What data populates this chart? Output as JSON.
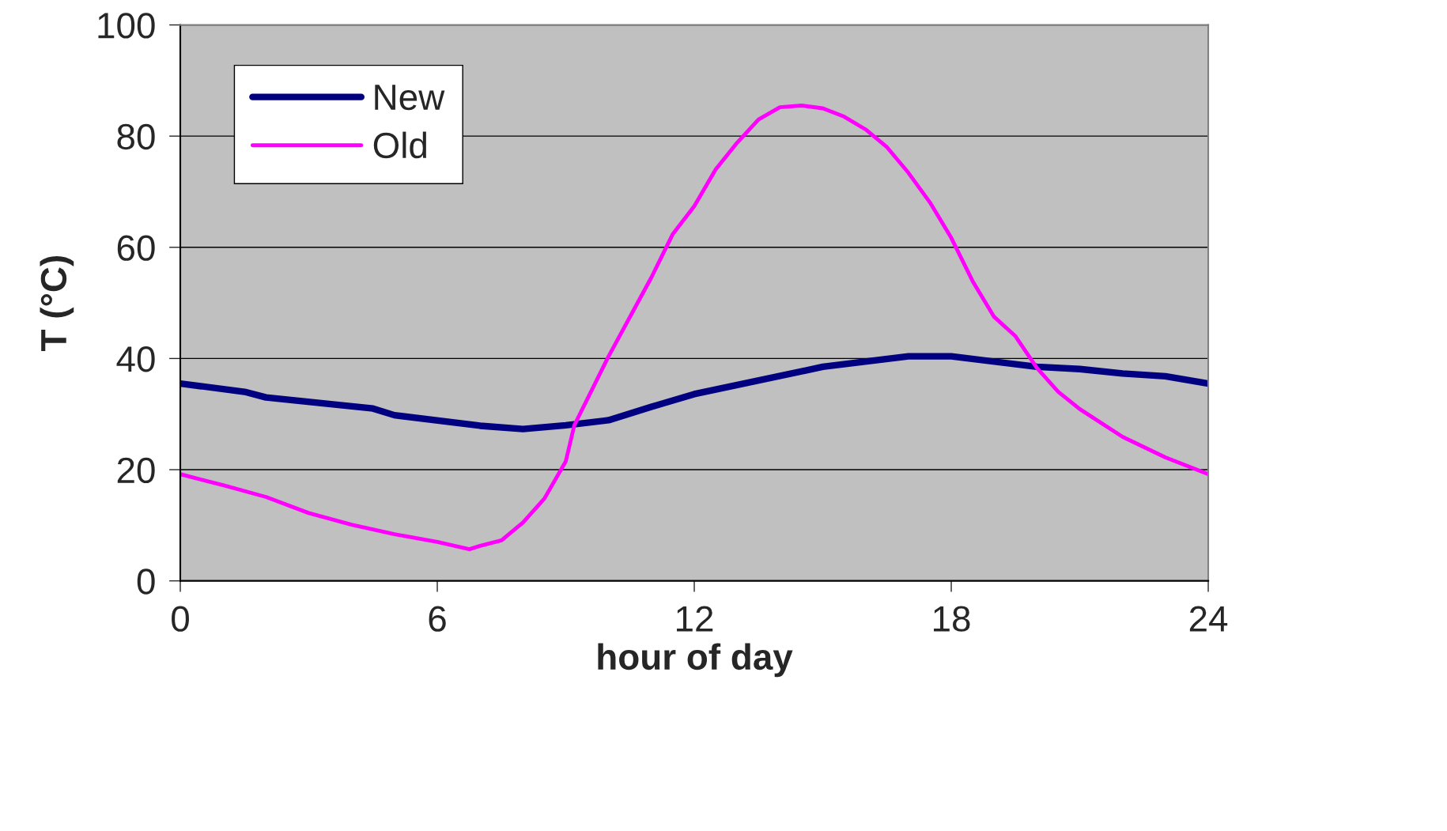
{
  "chart_data": {
    "type": "line",
    "xlabel": "hour of day",
    "ylabel": "T (°C)",
    "xlim": [
      0,
      24
    ],
    "ylim": [
      0,
      100
    ],
    "xticks": [
      0,
      6,
      12,
      18,
      24
    ],
    "yticks": [
      0,
      20,
      40,
      60,
      80,
      100
    ],
    "grid": "y",
    "legend": "top left",
    "marker": "none",
    "line_style": "solid",
    "series": [
      {
        "name": "New",
        "color": "#000080",
        "x": [
          0,
          1.5,
          2,
          4.5,
          5,
          7,
          8,
          9,
          10,
          11,
          12,
          15,
          17,
          18,
          20,
          21,
          22,
          23,
          24
        ],
        "values": [
          35.5,
          34,
          33,
          31,
          29.8,
          27.9,
          27.3,
          28,
          28.9,
          31.3,
          33.6,
          38.5,
          40.4,
          40.4,
          38.5,
          38.1,
          37.3,
          36.8,
          35.5
        ]
      },
      {
        "name": "Old",
        "color": "#ff00ff",
        "x": [
          0,
          1,
          2,
          3,
          4,
          5,
          6,
          6.75,
          7,
          7.5,
          8,
          8.5,
          9,
          9.2,
          10,
          11,
          11.5,
          12,
          12.5,
          13,
          13.5,
          14,
          14.5,
          15,
          15.5,
          16,
          16.5,
          17,
          17.5,
          18,
          18.5,
          19,
          19.5,
          20,
          20.5,
          21,
          22,
          23,
          24
        ],
        "values": [
          19.2,
          17.2,
          15.1,
          12.2,
          10.1,
          8.4,
          7,
          5.7,
          6.3,
          7.3,
          10.5,
          14.8,
          21.5,
          28,
          40.4,
          54.6,
          62.4,
          67.4,
          74,
          78.8,
          83,
          85.2,
          85.5,
          85,
          83.5,
          81.2,
          78,
          73.4,
          68.1,
          61.7,
          53.9,
          47.5,
          44,
          38.3,
          34,
          30.9,
          25.9,
          22.2,
          19.2
        ]
      }
    ]
  }
}
